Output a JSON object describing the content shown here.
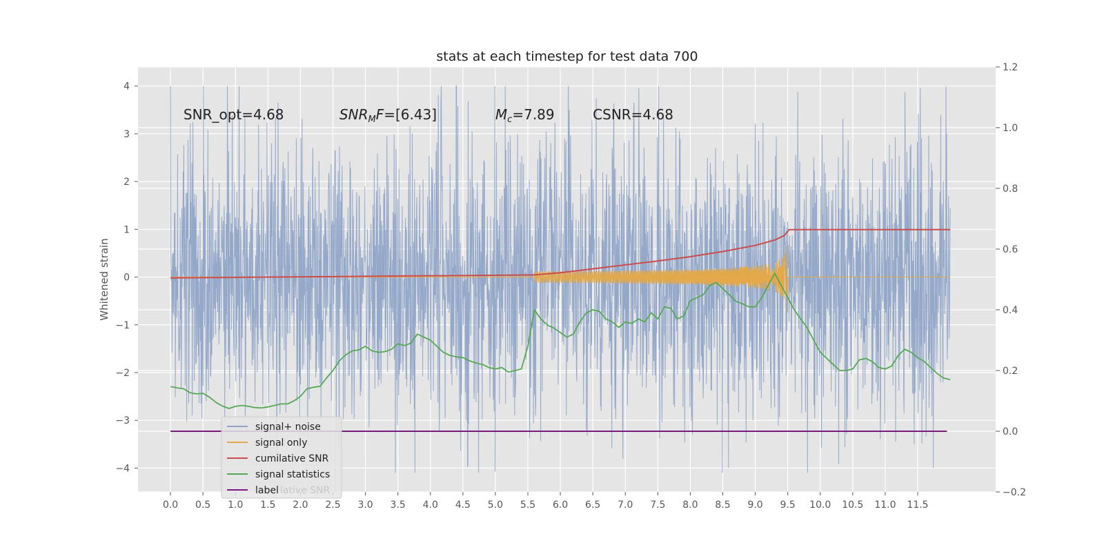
{
  "chart_data": {
    "type": "line",
    "title": "stats at each timestep for test data 700",
    "ylabel": "Whitened strain",
    "xlabel": "",
    "xlim": [
      -0.5,
      12.7
    ],
    "ylim": [
      -4.5,
      4.4
    ],
    "y2lim": [
      -0.2,
      1.2
    ],
    "x_ticks": [
      "0.0",
      "0.5",
      "1.0",
      "1.5",
      "2.0",
      "2.5",
      "3.0",
      "3.5",
      "4.0",
      "4.5",
      "5.0",
      "5.5",
      "6.0",
      "6.5",
      "7.0",
      "7.5",
      "8.0",
      "8.5",
      "9.0",
      "9.5",
      "10.0",
      "10.5",
      "11.0",
      "11.5"
    ],
    "y_ticks": [
      "4",
      "3",
      "2",
      "1",
      "0",
      "−1",
      "−2",
      "−3",
      "−4"
    ],
    "y2_ticks": [
      "1.2",
      "1.0",
      "0.8",
      "0.6",
      "0.4",
      "0.2",
      "0.0",
      "−0.2"
    ],
    "annotations": [
      {
        "id": "snr_opt",
        "text": "SNR_opt=4.68",
        "x": 0.2,
        "y": 3.3
      },
      {
        "id": "snr_mf",
        "label": "SNR",
        "sub": "M",
        "suffix": "F=[6.43]",
        "x": 2.6,
        "y": 3.3
      },
      {
        "id": "mc",
        "label": "M",
        "sub": "c",
        "suffix": "=7.89",
        "x": 5.0,
        "y": 3.3
      },
      {
        "id": "csnr",
        "text": "CSNR=4.68",
        "x": 6.5,
        "y": 3.3
      }
    ],
    "series": [
      {
        "name": "signal+ noise",
        "color": "#8fa4c8",
        "axis": "left",
        "x_range": [
          0.0,
          12.0
        ],
        "amplitude": 1.5,
        "clip": [
          -4.1,
          4.0
        ]
      },
      {
        "name": "signal only",
        "color": "#e3a84a",
        "axis": "left",
        "x_range": [
          0.0,
          12.0
        ],
        "merger_time": 9.5,
        "peak": 0.75
      },
      {
        "name": "cumilative SNR",
        "color": "#cc4c4c",
        "axis": "right",
        "points": [
          [
            0.0,
            0.505
          ],
          [
            5.6,
            0.515
          ],
          [
            6.0,
            0.522
          ],
          [
            6.5,
            0.535
          ],
          [
            7.0,
            0.548
          ],
          [
            7.5,
            0.561
          ],
          [
            8.0,
            0.575
          ],
          [
            8.5,
            0.592
          ],
          [
            9.0,
            0.612
          ],
          [
            9.3,
            0.63
          ],
          [
            9.45,
            0.645
          ],
          [
            9.52,
            0.664
          ],
          [
            12.0,
            0.664
          ]
        ]
      },
      {
        "name": "signal statistics",
        "color": "#55a854",
        "axis": "right",
        "points": [
          [
            0.0,
            0.147
          ],
          [
            0.1,
            0.143
          ],
          [
            0.2,
            0.14
          ],
          [
            0.3,
            0.127
          ],
          [
            0.4,
            0.123
          ],
          [
            0.5,
            0.125
          ],
          [
            0.6,
            0.112
          ],
          [
            0.7,
            0.095
          ],
          [
            0.8,
            0.083
          ],
          [
            0.9,
            0.075
          ],
          [
            1.0,
            0.082
          ],
          [
            1.1,
            0.085
          ],
          [
            1.2,
            0.082
          ],
          [
            1.3,
            0.078
          ],
          [
            1.4,
            0.077
          ],
          [
            1.5,
            0.08
          ],
          [
            1.6,
            0.085
          ],
          [
            1.7,
            0.09
          ],
          [
            1.8,
            0.09
          ],
          [
            1.9,
            0.1
          ],
          [
            2.0,
            0.115
          ],
          [
            2.1,
            0.14
          ],
          [
            2.2,
            0.145
          ],
          [
            2.3,
            0.148
          ],
          [
            2.4,
            0.175
          ],
          [
            2.5,
            0.2
          ],
          [
            2.6,
            0.232
          ],
          [
            2.7,
            0.252
          ],
          [
            2.8,
            0.265
          ],
          [
            2.9,
            0.268
          ],
          [
            3.0,
            0.28
          ],
          [
            3.1,
            0.265
          ],
          [
            3.2,
            0.26
          ],
          [
            3.3,
            0.262
          ],
          [
            3.4,
            0.27
          ],
          [
            3.5,
            0.288
          ],
          [
            3.6,
            0.282
          ],
          [
            3.7,
            0.29
          ],
          [
            3.8,
            0.32
          ],
          [
            3.9,
            0.31
          ],
          [
            4.0,
            0.3
          ],
          [
            4.1,
            0.28
          ],
          [
            4.2,
            0.26
          ],
          [
            4.3,
            0.25
          ],
          [
            4.4,
            0.245
          ],
          [
            4.5,
            0.243
          ],
          [
            4.6,
            0.232
          ],
          [
            4.7,
            0.225
          ],
          [
            4.8,
            0.22
          ],
          [
            4.9,
            0.21
          ],
          [
            5.0,
            0.205
          ],
          [
            5.1,
            0.21
          ],
          [
            5.2,
            0.195
          ],
          [
            5.3,
            0.2
          ],
          [
            5.4,
            0.205
          ],
          [
            5.5,
            0.28
          ],
          [
            5.6,
            0.4
          ],
          [
            5.7,
            0.37
          ],
          [
            5.8,
            0.35
          ],
          [
            5.9,
            0.34
          ],
          [
            6.0,
            0.325
          ],
          [
            6.1,
            0.31
          ],
          [
            6.2,
            0.32
          ],
          [
            6.3,
            0.36
          ],
          [
            6.4,
            0.39
          ],
          [
            6.5,
            0.4
          ],
          [
            6.6,
            0.395
          ],
          [
            6.7,
            0.37
          ],
          [
            6.8,
            0.36
          ],
          [
            6.9,
            0.342
          ],
          [
            7.0,
            0.36
          ],
          [
            7.1,
            0.355
          ],
          [
            7.2,
            0.37
          ],
          [
            7.3,
            0.36
          ],
          [
            7.4,
            0.39
          ],
          [
            7.5,
            0.37
          ],
          [
            7.6,
            0.41
          ],
          [
            7.7,
            0.405
          ],
          [
            7.8,
            0.37
          ],
          [
            7.9,
            0.38
          ],
          [
            8.0,
            0.43
          ],
          [
            8.1,
            0.44
          ],
          [
            8.2,
            0.45
          ],
          [
            8.3,
            0.48
          ],
          [
            8.4,
            0.49
          ],
          [
            8.5,
            0.47
          ],
          [
            8.6,
            0.45
          ],
          [
            8.7,
            0.428
          ],
          [
            8.8,
            0.42
          ],
          [
            8.9,
            0.41
          ],
          [
            9.0,
            0.41
          ],
          [
            9.1,
            0.44
          ],
          [
            9.2,
            0.48
          ],
          [
            9.3,
            0.52
          ],
          [
            9.35,
            0.5
          ],
          [
            9.4,
            0.48
          ],
          [
            9.5,
            0.44
          ],
          [
            9.6,
            0.4
          ],
          [
            9.7,
            0.37
          ],
          [
            9.8,
            0.34
          ],
          [
            9.9,
            0.3
          ],
          [
            10.0,
            0.26
          ],
          [
            10.1,
            0.24
          ],
          [
            10.2,
            0.22
          ],
          [
            10.3,
            0.2
          ],
          [
            10.4,
            0.2
          ],
          [
            10.5,
            0.205
          ],
          [
            10.6,
            0.235
          ],
          [
            10.7,
            0.24
          ],
          [
            10.8,
            0.23
          ],
          [
            10.9,
            0.21
          ],
          [
            11.0,
            0.205
          ],
          [
            11.1,
            0.215
          ],
          [
            11.2,
            0.25
          ],
          [
            11.3,
            0.27
          ],
          [
            11.4,
            0.26
          ],
          [
            11.5,
            0.242
          ],
          [
            11.6,
            0.23
          ],
          [
            11.7,
            0.21
          ],
          [
            11.8,
            0.19
          ],
          [
            11.9,
            0.175
          ],
          [
            12.0,
            0.17
          ]
        ]
      },
      {
        "name": "label",
        "color": "#7b1a7e",
        "axis": "right",
        "points": [
          [
            0.0,
            0.0
          ],
          [
            11.95,
            0.0
          ]
        ]
      }
    ],
    "legend": {
      "placement": "lower-left",
      "entries": [
        "signal+ noise",
        "signal only",
        "cumilative SNR",
        "signal statistics",
        "label"
      ],
      "ghost_text": "lative SNR"
    },
    "grid": true,
    "background": "#e5e5e5"
  }
}
